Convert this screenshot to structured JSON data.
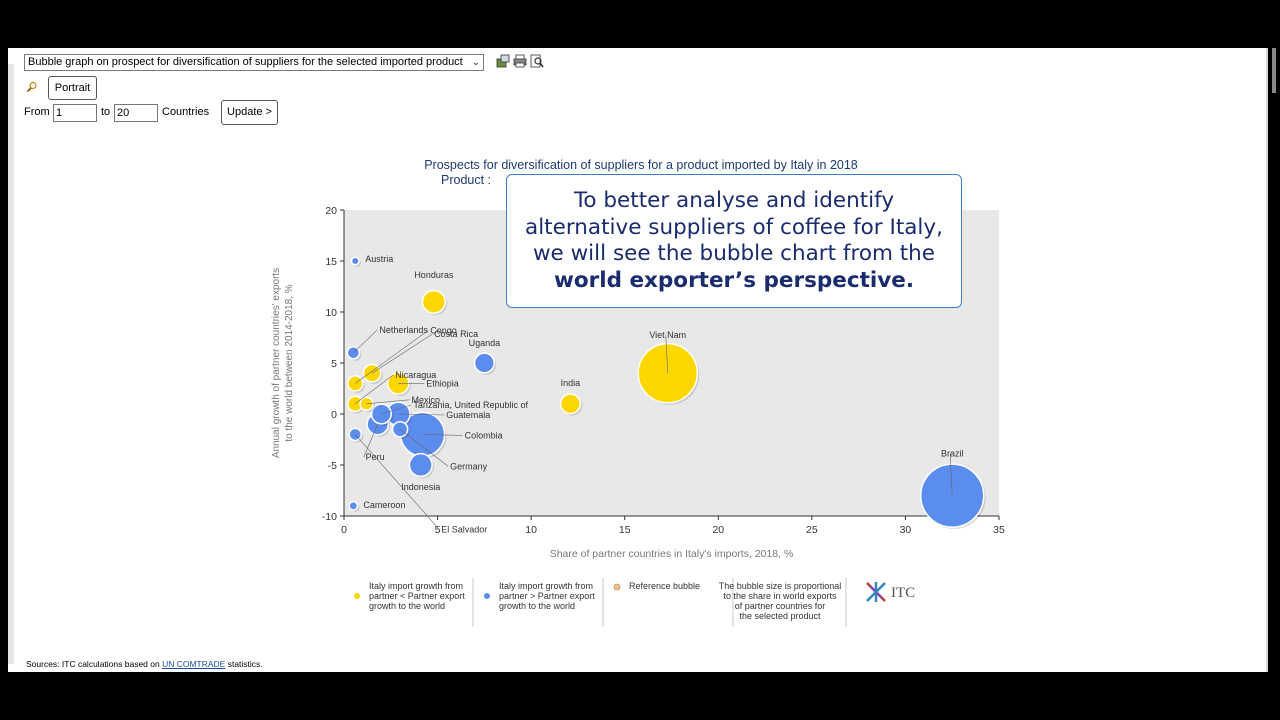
{
  "toolbar": {
    "view_select": "Bubble graph on prospect for diversification of suppliers for the selected imported product",
    "portrait_label": "Portrait",
    "from_label": "From",
    "from_value": "1",
    "to_label": "to",
    "to_value": "20",
    "countries_label": "Countries",
    "update_label": "Update >"
  },
  "callout": {
    "line1": "To better analyse and identify",
    "line2": "alternative suppliers of coffee for Italy,",
    "line3": "we will see the bubble chart from the",
    "line4_bold": "world exporter’s perspective."
  },
  "sources": {
    "prefix": "Sources: ITC calculations based on ",
    "link": "UN COMTRADE",
    "suffix": " statistics."
  },
  "colors": {
    "yellow": "#FFD700",
    "blue": "#5B8DEF",
    "plot_bg": "#E8E8E8",
    "title": "#1f3a6e",
    "callout_border": "#3d7cc9"
  },
  "chart_data": {
    "type": "scatter",
    "title": "Prospects for diversification of suppliers for a product imported by Italy in 2018",
    "subtitle": "Product :",
    "xlabel": "Share of partner countries in Italy's imports, 2018, %",
    "ylabel_line1": "Annual growth of partner countries' exports",
    "ylabel_line2": "to the world between 2014-2018, %",
    "xlim": [
      0,
      35
    ],
    "ylim": [
      -10,
      20
    ],
    "x_ticks": [
      0,
      5,
      10,
      15,
      20,
      25,
      30,
      35
    ],
    "y_ticks": [
      20,
      15,
      10,
      5,
      0,
      -5,
      -10
    ],
    "grid": false,
    "points": [
      {
        "label": "Austria",
        "x": 0.6,
        "y": 15,
        "size": 0.2,
        "color": "blue"
      },
      {
        "label": "Honduras",
        "x": 4.8,
        "y": 11,
        "size": 2.2,
        "color": "yellow"
      },
      {
        "label": "Netherlands",
        "x": 0.5,
        "y": 6,
        "size": 0.8,
        "color": "blue"
      },
      {
        "label": "Congo",
        "x": 0.6,
        "y": 3,
        "size": 1.2,
        "color": "yellow"
      },
      {
        "label": "Costa Rica",
        "x": 1.5,
        "y": 4,
        "size": 1.5,
        "color": "yellow"
      },
      {
        "label": "Nicaragua",
        "x": 0.6,
        "y": 1,
        "size": 1.2,
        "color": "yellow"
      },
      {
        "label": "Uganda",
        "x": 7.5,
        "y": 5,
        "size": 1.8,
        "color": "blue"
      },
      {
        "label": "Viet Nam",
        "x": 17.3,
        "y": 4,
        "size": 7.0,
        "color": "yellow"
      },
      {
        "label": "India",
        "x": 12.1,
        "y": 1,
        "size": 1.8,
        "color": "yellow"
      },
      {
        "label": "Ethiopia",
        "x": 2.9,
        "y": 3,
        "size": 2.0,
        "color": "yellow"
      },
      {
        "label": "Mexico",
        "x": 1.2,
        "y": 1,
        "size": 0.9,
        "color": "yellow"
      },
      {
        "label": "Tanzania, United Republic of",
        "x": 2.0,
        "y": 0,
        "size": 1.8,
        "color": "blue"
      },
      {
        "label": "Guatemala",
        "x": 2.9,
        "y": 0,
        "size": 2.3,
        "color": "blue"
      },
      {
        "label": "Colombia",
        "x": 4.2,
        "y": -2,
        "size": 5.0,
        "color": "blue"
      },
      {
        "label": "Peru",
        "x": 1.8,
        "y": -1,
        "size": 2.0,
        "color": "blue"
      },
      {
        "label": "Germany",
        "x": 3.0,
        "y": -1.5,
        "size": 1.2,
        "color": "blue"
      },
      {
        "label": "Indonesia",
        "x": 4.1,
        "y": -5,
        "size": 2.2,
        "color": "blue"
      },
      {
        "label": "El Salvador",
        "x": 0.6,
        "y": -2,
        "size": 0.8,
        "color": "blue"
      },
      {
        "label": "Brazil",
        "x": 32.5,
        "y": -8,
        "size": 7.5,
        "color": "blue"
      },
      {
        "label": "Cameroon",
        "x": 0.5,
        "y": -9,
        "size": 0.3,
        "color": "blue"
      }
    ],
    "legend": [
      {
        "marker": "yellow",
        "text": [
          "Italy import growth from",
          "partner < Partner export",
          "growth to the world"
        ]
      },
      {
        "marker": "blue",
        "text": [
          "Italy import growth from",
          "partner > Partner export",
          "growth to the world"
        ]
      },
      {
        "marker": "reference",
        "text": [
          "Reference bubble"
        ]
      },
      {
        "marker": "none",
        "text": [
          "The bubble size is proportional",
          "to the share in world exports",
          "of partner countries for",
          "the selected product"
        ]
      }
    ],
    "logo_text": "ITC"
  }
}
